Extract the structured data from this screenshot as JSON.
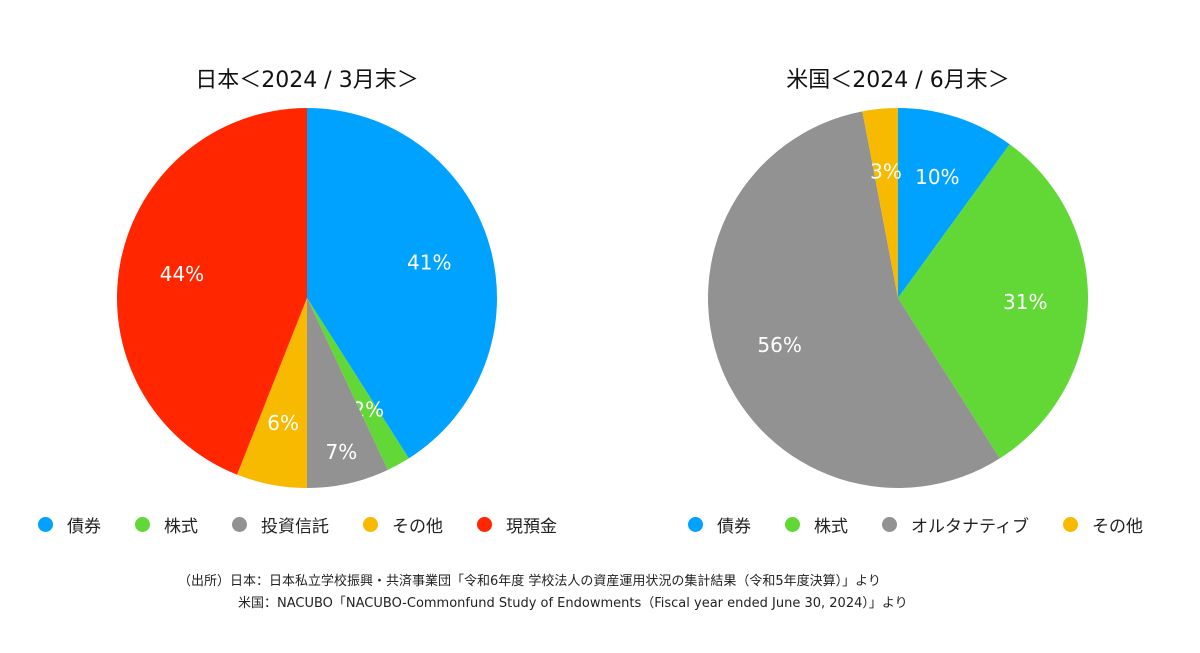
{
  "colors": {
    "債券": "#00A2FF",
    "株式": "#61D836",
    "投資信託": "#929292",
    "オルタナティブ": "#929292",
    "その他": "#F8BA00",
    "現預金": "#FF2600"
  },
  "chart_data": [
    {
      "type": "pie",
      "title": "日本＜2024 / 3月末＞",
      "categories": [
        "債券",
        "株式",
        "投資信託",
        "その他",
        "現預金"
      ],
      "values": [
        41,
        2,
        7,
        6,
        44
      ],
      "data_labels": [
        "41%",
        "2%",
        "7%",
        "6%",
        "44%"
      ],
      "legend": "bottom"
    },
    {
      "type": "pie",
      "title": "米国＜2024 / 6月末＞",
      "categories": [
        "債券",
        "株式",
        "オルタナティブ",
        "その他"
      ],
      "values": [
        10,
        31,
        56,
        3
      ],
      "data_labels": [
        "10%",
        "31%",
        "56%",
        "3%"
      ],
      "legend": "bottom"
    }
  ],
  "footnote": {
    "line1": "（出所）日本：日本私立学校振興・共済事業団「令和6年度 学校法人の資産運用状況の集計結果（令和5年度決算）」より",
    "line2": "米国：NACUBO「NACUBO-Commonfund Study of Endowments（Fiscal year ended June 30, 2024）」より"
  }
}
